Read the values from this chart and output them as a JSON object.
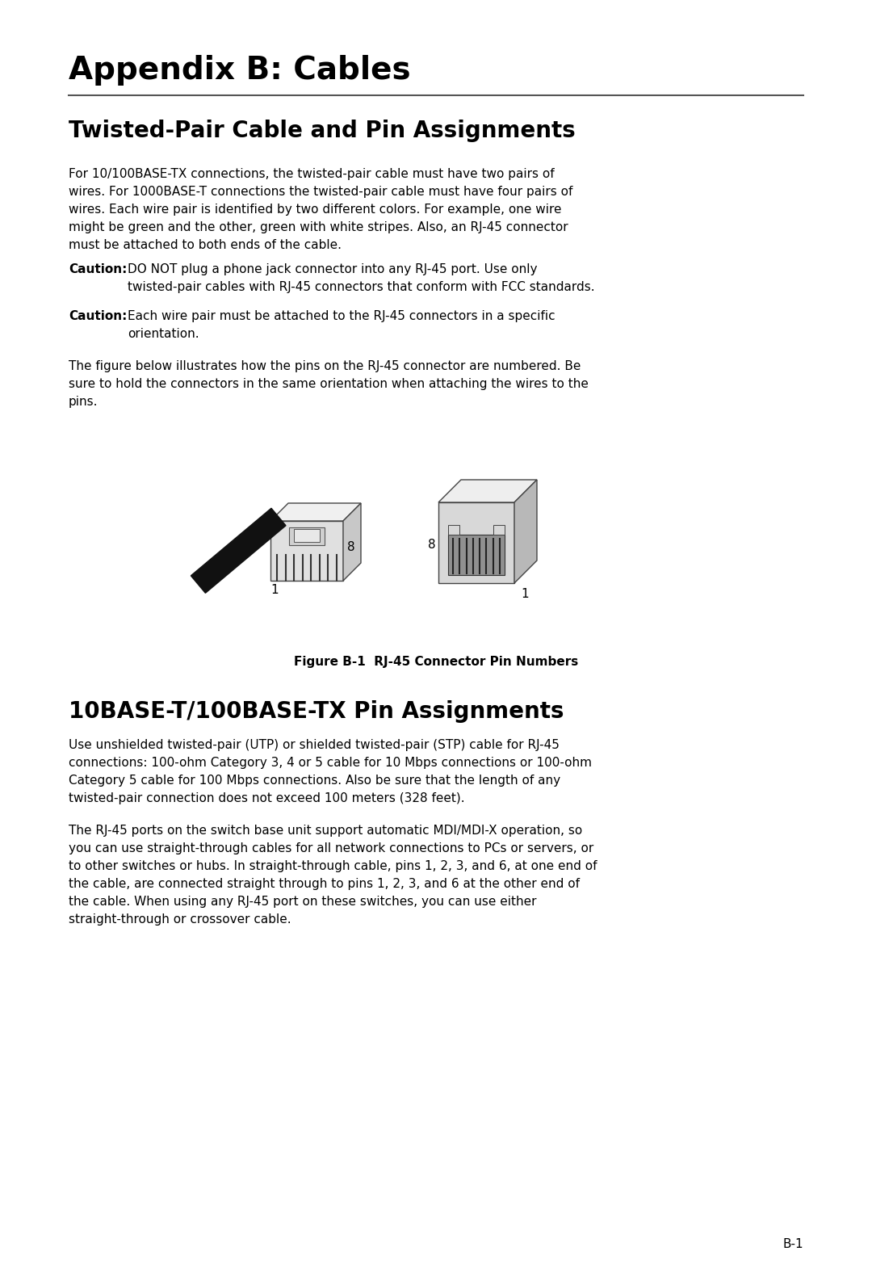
{
  "bg_color": "#ffffff",
  "title": "Appendix B: Cables",
  "section1_title": "Twisted-Pair Cable and Pin Assignments",
  "section1_para1": "For 10/100BASE-TX connections, the twisted-pair cable must have two pairs of\nwires. For 1000BASE-T connections the twisted-pair cable must have four pairs of\nwires. Each wire pair is identified by two different colors. For example, one wire\nmight be green and the other, green with white stripes. Also, an RJ-45 connector\nmust be attached to both ends of the cable.",
  "caution1_label": "Caution:",
  "caution1_text": "DO NOT plug a phone jack connector into any RJ-45 port. Use only\ntwisted-pair cables with RJ-45 connectors that conform with FCC standards.",
  "caution2_label": "Caution:",
  "caution2_text": "Each wire pair must be attached to the RJ-45 connectors in a specific\norientation.",
  "para2": "The figure below illustrates how the pins on the RJ-45 connector are numbered. Be\nsure to hold the connectors in the same orientation when attaching the wires to the\npins.",
  "fig_caption": "Figure B-1  RJ-45 Connector Pin Numbers",
  "section2_title": "10BASE-T/100BASE-TX Pin Assignments",
  "section2_para1": "Use unshielded twisted-pair (UTP) or shielded twisted-pair (STP) cable for RJ-45\nconnections: 100-ohm Category 3, 4 or 5 cable for 10 Mbps connections or 100-ohm\nCategory 5 cable for 100 Mbps connections. Also be sure that the length of any\ntwisted-pair connection does not exceed 100 meters (328 feet).",
  "section2_para2": "The RJ-45 ports on the switch base unit support automatic MDI/MDI-X operation, so\nyou can use straight-through cables for all network connections to PCs or servers, or\nto other switches or hubs. In straight-through cable, pins 1, 2, 3, and 6, at one end of\nthe cable, are connected straight through to pins 1, 2, 3, and 6 at the other end of\nthe cable. When using any RJ-45 port on these switches, you can use either\nstraight-through or crossover cable.",
  "page_number": "B-1",
  "text_color": "#000000",
  "line_color": "#555555"
}
